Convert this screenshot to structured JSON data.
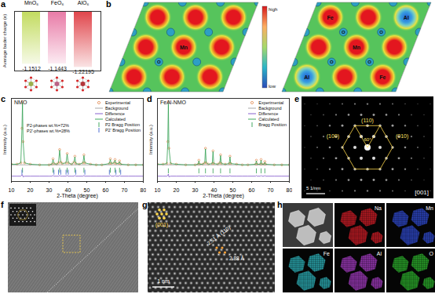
{
  "chart_data": [
    {
      "panel": "a",
      "type": "bar",
      "y_label": "Average bader charge (e)",
      "categories": [
        "MnO₆",
        "FeO₆",
        "AlO₆"
      ],
      "values": [
        -1.1512,
        -1.1443,
        -1.22195
      ],
      "colors": [
        "#c2db5e",
        "#e87aa6",
        "#e0444a"
      ],
      "ylim": [
        -1.3,
        0
      ],
      "yticks": [],
      "tick_labels": "x",
      "data_labels": true
    },
    {
      "panel": "c",
      "type": "line",
      "title": "NMO",
      "x_label": "2-Theta (degree)",
      "y_label": "Intensity (a.u.)",
      "xlim": [
        10,
        80
      ],
      "xticks": [
        10,
        20,
        30,
        40,
        50,
        60,
        70,
        80
      ],
      "ylim": [
        -20,
        105
      ],
      "yticks": [],
      "tick_labels": "x",
      "legend": "upper right",
      "annotations": [
        "P2-phases wt.%=72%",
        "P2'-phases wt.%=28%"
      ],
      "series": [
        {
          "name": "Experimental",
          "type": "scatter",
          "marker": "circle",
          "color": "#e07b39",
          "x": [
            10,
            13,
            15,
            15.6,
            15.9,
            16.2,
            17,
            20,
            25,
            30,
            31.5,
            32.1,
            32.6,
            34,
            35,
            35.6,
            36.2,
            37,
            39,
            39.6,
            40.2,
            42,
            43.2,
            43.7,
            44.2,
            46,
            48,
            48.5,
            49,
            52,
            55,
            58,
            62,
            62.5,
            63,
            64.5,
            65,
            65.5,
            67,
            67.4,
            68,
            72,
            76,
            80
          ],
          "values": [
            6,
            6,
            8,
            60,
            100,
            40,
            8,
            6,
            5,
            5,
            6,
            14,
            7,
            6,
            8,
            28,
            9,
            7,
            8,
            22,
            8,
            6,
            9,
            18,
            7,
            6,
            8,
            20,
            8,
            6,
            5,
            5,
            7,
            14,
            7,
            8,
            13,
            7,
            7,
            11,
            6,
            5,
            5,
            5
          ]
        },
        {
          "name": "Background",
          "type": "line",
          "color": "#9e9e9e",
          "x": [
            10,
            80
          ],
          "values": [
            5,
            5
          ]
        },
        {
          "name": "Difference",
          "type": "line",
          "color": "#7b4fc9",
          "x": [
            10,
            13,
            15,
            15.6,
            15.9,
            16.2,
            17,
            20,
            25,
            30,
            31.5,
            32.1,
            32.6,
            34,
            35,
            35.6,
            36.2,
            37,
            39,
            39.6,
            40.2,
            42,
            43.2,
            43.7,
            44.2,
            46,
            48,
            48.5,
            49,
            52,
            55,
            58,
            62,
            62.5,
            63,
            64.5,
            65,
            65.5,
            67,
            67.4,
            68,
            72,
            76,
            80
          ],
          "values": [
            -12,
            -12,
            -12,
            -10,
            -10,
            -13,
            -12,
            -12,
            -12,
            -12,
            -12,
            -11,
            -12,
            -12,
            -12,
            -11,
            -12,
            -12,
            -12,
            -11,
            -12,
            -12,
            -12,
            -11,
            -12,
            -12,
            -12,
            -11,
            -12,
            -12,
            -12,
            -12,
            -12,
            -11,
            -12,
            -12,
            -11,
            -12,
            -12,
            -11,
            -12,
            -12,
            -12,
            -12
          ]
        },
        {
          "name": "Calculated",
          "type": "line",
          "color": "#2e9e4f",
          "x": [
            10,
            13,
            15,
            15.6,
            15.9,
            16.2,
            17,
            20,
            25,
            30,
            31.5,
            32.1,
            32.6,
            34,
            35,
            35.6,
            36.2,
            37,
            39,
            39.6,
            40.2,
            42,
            43.2,
            43.7,
            44.2,
            46,
            48,
            48.5,
            49,
            52,
            55,
            58,
            62,
            62.5,
            63,
            64.5,
            65,
            65.5,
            67,
            67.4,
            68,
            72,
            76,
            80
          ],
          "values": [
            6,
            6,
            8,
            58,
            98,
            41,
            8,
            6,
            5,
            5,
            6,
            13,
            7,
            6,
            8,
            27,
            9,
            7,
            8,
            21,
            8,
            6,
            9,
            17,
            7,
            6,
            8,
            19,
            8,
            6,
            5,
            5,
            7,
            13,
            7,
            8,
            12,
            7,
            7,
            10,
            6,
            5,
            5,
            5
          ]
        },
        {
          "name": "P2 Bragg Position",
          "type": "scatter",
          "marker": "tick",
          "color": "#2e9e4f",
          "x": [
            15.9,
            32.1,
            35.6,
            39.6,
            43.7,
            48.5,
            62.5,
            65,
            67.4
          ],
          "values": [
            -3,
            -3,
            -3,
            -3,
            -3,
            -3,
            -3,
            -3,
            -3
          ]
        },
        {
          "name": "P2' Bragg Position",
          "type": "scatter",
          "marker": "tick",
          "color": "#3a5fcd",
          "x": [
            15.6,
            32.6,
            35,
            36.2,
            39,
            40.2,
            44.2,
            49,
            62,
            65.5,
            68
          ],
          "values": [
            -6,
            -6,
            -6,
            -6,
            -6,
            -6,
            -6,
            -6,
            -6,
            -6,
            -6
          ]
        }
      ]
    },
    {
      "panel": "d",
      "type": "line",
      "title": "FeAl-NMO",
      "x_label": "2-Theta (degree)",
      "y_label": "Intensity (a.u.)",
      "xlim": [
        10,
        80
      ],
      "xticks": [
        10,
        20,
        30,
        40,
        50,
        60,
        70,
        80
      ],
      "ylim": [
        -20,
        105
      ],
      "yticks": [],
      "tick_labels": "x",
      "legend": "upper right",
      "series": [
        {
          "name": "Experimental",
          "type": "scatter",
          "marker": "circle",
          "color": "#e07b39",
          "x": [
            10,
            13,
            15,
            15.5,
            15.8,
            16.1,
            17,
            20,
            25,
            30,
            31.6,
            32,
            32.4,
            34,
            35.1,
            35.5,
            35.9,
            37,
            39.1,
            39.5,
            39.9,
            42,
            43.1,
            43.5,
            43.9,
            46,
            48.1,
            48.5,
            48.9,
            52,
            55,
            58,
            62.1,
            62.5,
            62.9,
            64.6,
            65,
            65.4,
            66.6,
            67,
            67.4,
            72,
            76,
            80
          ],
          "values": [
            6,
            6,
            7,
            40,
            100,
            30,
            7,
            6,
            5,
            5,
            6,
            12,
            6,
            6,
            8,
            30,
            8,
            6,
            7,
            26,
            7,
            6,
            8,
            20,
            7,
            6,
            7,
            18,
            7,
            6,
            5,
            5,
            6,
            12,
            6,
            6,
            13,
            6,
            6,
            10,
            6,
            5,
            5,
            5
          ]
        },
        {
          "name": "Background",
          "type": "line",
          "color": "#9e9e9e",
          "x": [
            10,
            80
          ],
          "values": [
            5,
            5
          ]
        },
        {
          "name": "Difference",
          "type": "line",
          "color": "#7b4fc9",
          "x": [
            10,
            13,
            15,
            15.5,
            15.8,
            16.1,
            17,
            20,
            25,
            30,
            31.6,
            32,
            32.4,
            34,
            35.1,
            35.5,
            35.9,
            37,
            39.1,
            39.5,
            39.9,
            42,
            43.1,
            43.5,
            43.9,
            46,
            48.1,
            48.5,
            48.9,
            52,
            55,
            58,
            62.1,
            62.5,
            62.9,
            64.6,
            65,
            65.4,
            66.6,
            67,
            67.4,
            72,
            76,
            80
          ],
          "values": [
            -12,
            -12,
            -12,
            -11,
            -9,
            -13,
            -12,
            -12,
            -12,
            -12,
            -12,
            -11,
            -12,
            -12,
            -12,
            -11,
            -12,
            -12,
            -12,
            -11,
            -12,
            -12,
            -12,
            -11,
            -12,
            -12,
            -12,
            -11,
            -12,
            -12,
            -12,
            -12,
            -12,
            -11,
            -12,
            -12,
            -11,
            -12,
            -12,
            -11,
            -12,
            -12,
            -12,
            -12
          ]
        },
        {
          "name": "Calculated",
          "type": "line",
          "color": "#2e9e4f",
          "x": [
            10,
            13,
            15,
            15.5,
            15.8,
            16.1,
            17,
            20,
            25,
            30,
            31.6,
            32,
            32.4,
            34,
            35.1,
            35.5,
            35.9,
            37,
            39.1,
            39.5,
            39.9,
            42,
            43.1,
            43.5,
            43.9,
            46,
            48.1,
            48.5,
            48.9,
            52,
            55,
            58,
            62.1,
            62.5,
            62.9,
            64.6,
            65,
            65.4,
            66.6,
            67,
            67.4,
            72,
            76,
            80
          ],
          "values": [
            6,
            6,
            7,
            39,
            97,
            31,
            7,
            6,
            5,
            5,
            6,
            11,
            6,
            6,
            8,
            29,
            8,
            6,
            7,
            25,
            7,
            6,
            8,
            19,
            7,
            6,
            7,
            17,
            7,
            6,
            5,
            5,
            6,
            11,
            6,
            6,
            12,
            6,
            6,
            9,
            6,
            5,
            5,
            5
          ]
        },
        {
          "name": "Bragg Position",
          "type": "scatter",
          "marker": "tick",
          "color": "#2e9e4f",
          "x": [
            15.8,
            32,
            35.5,
            39.5,
            43.5,
            48.5,
            62.5,
            65,
            67
          ],
          "values": [
            -4,
            -4,
            -4,
            -4,
            -4,
            -4,
            -4,
            -4,
            -4
          ]
        }
      ]
    }
  ],
  "panels": {
    "b": {
      "panel": "b",
      "maps": [
        {
          "atoms": [
            "Mn",
            "O"
          ]
        },
        {
          "atoms": [
            "Fe",
            "Al",
            "O",
            "O",
            "Mn",
            "O",
            "O",
            "Al",
            "Fe"
          ]
        }
      ],
      "colorbar": [
        "high",
        "low"
      ]
    },
    "e": {
      "panel": "e",
      "spots": [
        "(110)",
        "(100)",
        "(010)"
      ],
      "angle": "60°",
      "zone_axis": "[001]",
      "scale_bar": "5 1/nm"
    },
    "f": {
      "panel": "f"
    },
    "g": {
      "panel": "g",
      "plane": "(001)",
      "spacings": [
        "2.51 Å (110)",
        "2.88 Å"
      ],
      "scale_bar": "1 nm"
    },
    "h": {
      "panel": "h",
      "maps": [
        {
          "name": "Na",
          "color": "#e0202a"
        },
        {
          "name": "Mn",
          "color": "#3450e0"
        },
        {
          "name": "Fe",
          "color": "#30c0c8"
        },
        {
          "name": "Al",
          "color": "#b040d0"
        },
        {
          "name": "O",
          "color": "#30c030"
        }
      ]
    }
  }
}
